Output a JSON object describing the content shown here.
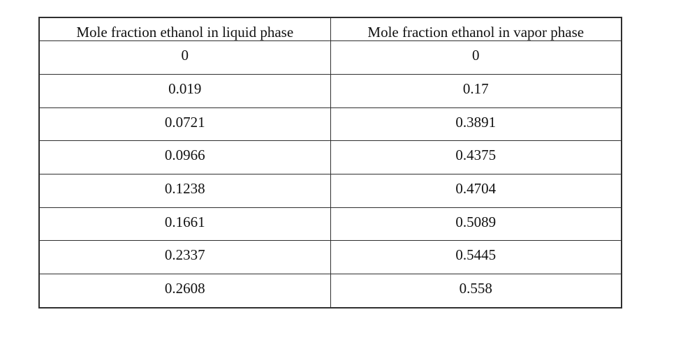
{
  "page": {
    "background_color": "#ffffff",
    "text_color": "#111111",
    "table_border_color": "#2f2f2f"
  },
  "table": {
    "columns": [
      "Mole fraction ethanol in liquid phase",
      "Mole fraction ethanol in vapor phase"
    ],
    "rows": [
      {
        "liquid": "0",
        "vapor": "0"
      },
      {
        "liquid": "0.019",
        "vapor": "0.17"
      },
      {
        "liquid": "0.0721",
        "vapor": "0.3891"
      },
      {
        "liquid": "0.0966",
        "vapor": "0.4375"
      },
      {
        "liquid": "0.1238",
        "vapor": "0.4704"
      },
      {
        "liquid": "0.1661",
        "vapor": "0.5089"
      },
      {
        "liquid": "0.2337",
        "vapor": "0.5445"
      },
      {
        "liquid": "0.2608",
        "vapor": "0.558"
      }
    ]
  },
  "chart_data": {
    "type": "table",
    "title": "",
    "columns": [
      "Mole fraction ethanol in liquid phase",
      "Mole fraction ethanol in vapor phase"
    ],
    "rows": [
      [
        0,
        0
      ],
      [
        0.019,
        0.17
      ],
      [
        0.0721,
        0.3891
      ],
      [
        0.0966,
        0.4375
      ],
      [
        0.1238,
        0.4704
      ],
      [
        0.1661,
        0.5089
      ],
      [
        0.2337,
        0.5445
      ],
      [
        0.2608,
        0.558
      ]
    ]
  }
}
